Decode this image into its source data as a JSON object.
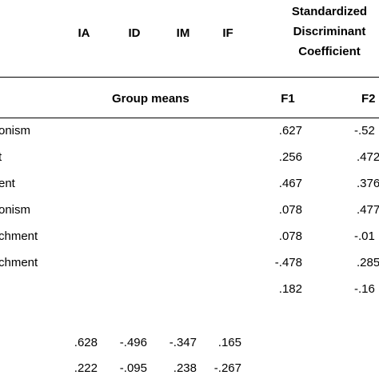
{
  "header": {
    "groups": [
      "IA",
      "ID",
      "IM",
      "IF"
    ],
    "sdc_title": [
      "Standardized",
      "Discriminant",
      "Coefficient"
    ],
    "group_means": "Group means",
    "functions": [
      "F1",
      "F2"
    ]
  },
  "rows": [
    {
      "label": "onism",
      "f1": ".627",
      "f2": "-.52"
    },
    {
      "label": "t",
      "f1": ".256",
      "f2": ".472"
    },
    {
      "label": "ent",
      "f1": ".467",
      "f2": ".376"
    },
    {
      "label": "onism",
      "f1": ".078",
      "f2": ".477"
    },
    {
      "label": "chment",
      "f1": ".078",
      "f2": "-.01"
    },
    {
      "label": "chment",
      "f1": "-.478",
      "f2": ".285"
    },
    {
      "label": "",
      "f1": ".182",
      "f2": "-.16"
    }
  ],
  "means": [
    {
      "ia": ".628",
      "id": "-.496",
      "im": "-.347",
      "if": ".165"
    },
    {
      "ia": ".222",
      "id": "-.095",
      "im": ".238",
      "if": "-.267"
    }
  ]
}
